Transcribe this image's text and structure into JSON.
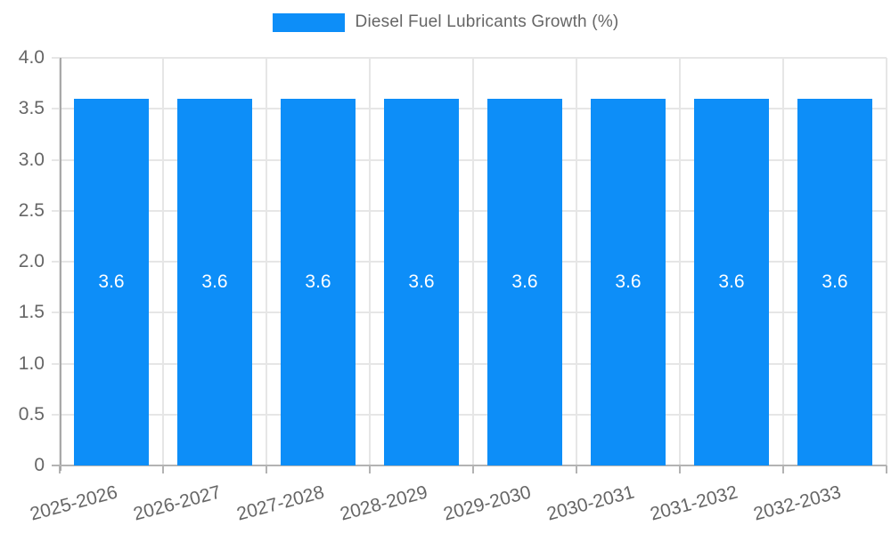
{
  "chart_data": {
    "type": "bar",
    "title": "",
    "legend": "Diesel Fuel Lubricants Growth (%)",
    "legend_position": "top",
    "categories": [
      "2025-2026",
      "2026-2027",
      "2027-2028",
      "2028-2029",
      "2029-2030",
      "2030-2031",
      "2031-2032",
      "2032-2033"
    ],
    "values": [
      3.6,
      3.6,
      3.6,
      3.6,
      3.6,
      3.6,
      3.6,
      3.6
    ],
    "bar_labels": [
      "3.6",
      "3.6",
      "3.6",
      "3.6",
      "3.6",
      "3.6",
      "3.6",
      "3.6"
    ],
    "xlabel": "",
    "ylabel": "",
    "ylim": [
      0,
      4
    ],
    "y_ticks": [
      {
        "v": 0,
        "label": "0"
      },
      {
        "v": 0.5,
        "label": "0.5"
      },
      {
        "v": 1,
        "label": "1.0"
      },
      {
        "v": 1.5,
        "label": "1.5"
      },
      {
        "v": 2,
        "label": "2.0"
      },
      {
        "v": 2.5,
        "label": "2.5"
      },
      {
        "v": 3,
        "label": "3.0"
      },
      {
        "v": 3.5,
        "label": "3.5"
      },
      {
        "v": 4,
        "label": "4.0"
      }
    ],
    "grid": true,
    "x_label_rotation": -15,
    "colors": {
      "bar": "#0d8ef8",
      "bar_label": "#ffffff",
      "grid": "#e6e6e6",
      "axis": "#b3b3b3",
      "tick_text": "#666666",
      "legend_text": "#666666"
    }
  }
}
